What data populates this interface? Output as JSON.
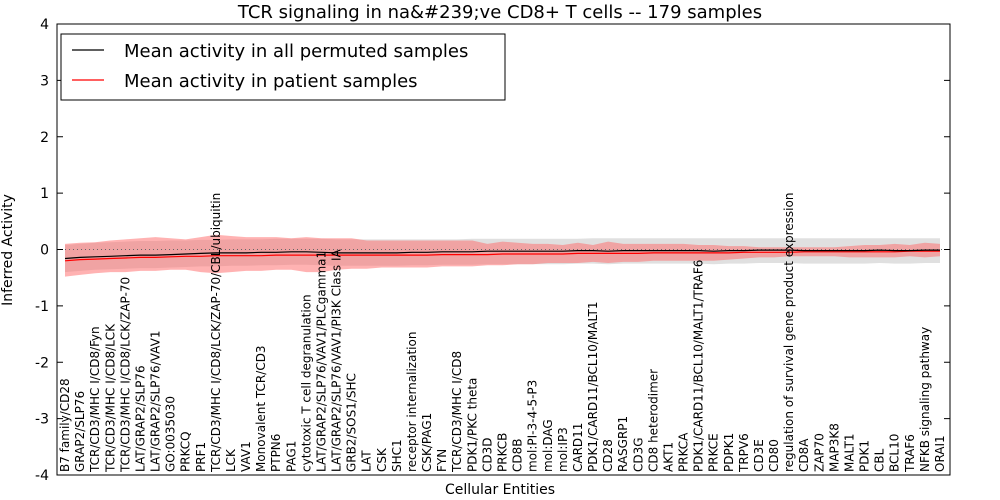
{
  "chart_data": {
    "type": "line",
    "title": "TCR signaling in na&#239;ve CD8+ T cells -- 179 samples",
    "xlabel": "Cellular Entities",
    "ylabel": "Inferred Activity",
    "ylim": [
      -4,
      4
    ],
    "yticks": [
      "-4",
      "-3",
      "-2",
      "-1",
      "0",
      "1",
      "2",
      "3",
      "4"
    ],
    "legend_position": "top-left",
    "zero_line": "dotted",
    "categories": [
      "B7 family/CD28",
      "GRAP2/SLP76",
      "TCR/CD3/MHC I/CD8/Fyn",
      "TCR/CD3/MHC I/CD8/LCK",
      "TCR/CD3/MHC I/CD8/LCK/ZAP-70",
      "LAT/GRAP2/SLP76",
      "LAT/GRAP2/SLP76/VAV1",
      "GO:0035030",
      "PRKCQ",
      "PRF1",
      "TCR/CD3/MHC I/CD8/LCK/ZAP-70/CBL/ubiquitin",
      "LCK",
      "VAV1",
      "Monovalent TCR/CD3",
      "PTPN6",
      "PAG1",
      "cytotoxic T cell degranulation",
      "LAT/GRAP2/SLP76/VAV1/PLCgamma1",
      "LAT/GRAP2/SLP76/VAV1/PI3K Class IA",
      "GRB2/SOS1/SHC",
      "LAT",
      "CSK",
      "SHC1",
      "receptor internalization",
      "CSK/PAG1",
      "FYN",
      "TCR/CD3/MHC I/CD8",
      "PDK1/PKC theta",
      "CD3D",
      "PRKCB",
      "CD8B",
      "mol:PI-3-4-5-P3",
      "mol:DAG",
      "mol:IP3",
      "CARD11",
      "PDK1/CARD11/BCL10/MALT1",
      "CD28",
      "RASGRP1",
      "CD3G",
      "CD8 heterodimer",
      "AKT1",
      "PRKCA",
      "PDK1/CARD11/BCL10/MALT1/TRAF6",
      "PRKCE",
      "PDPK1",
      "TRPV6",
      "CD3E",
      "CD80",
      "regulation of survival gene product expression",
      "CD8A",
      "ZAP70",
      "MAP3K8",
      "MALT1",
      "PDK1",
      "CBL",
      "BCL10",
      "TRAF6",
      "NFKB signaling pathway",
      "ORAI1"
    ],
    "series": [
      {
        "name": "Mean activity in all permuted samples",
        "color": "#000000",
        "values": [
          -0.16,
          -0.14,
          -0.13,
          -0.12,
          -0.11,
          -0.1,
          -0.1,
          -0.09,
          -0.08,
          -0.07,
          -0.06,
          -0.06,
          -0.06,
          -0.05,
          -0.05,
          -0.04,
          -0.04,
          -0.05,
          -0.06,
          -0.06,
          -0.06,
          -0.06,
          -0.06,
          -0.05,
          -0.05,
          -0.04,
          -0.04,
          -0.04,
          -0.03,
          -0.03,
          -0.03,
          -0.03,
          -0.03,
          -0.03,
          -0.02,
          -0.02,
          -0.03,
          -0.02,
          -0.02,
          -0.02,
          -0.02,
          -0.02,
          -0.02,
          -0.03,
          -0.02,
          -0.02,
          -0.01,
          -0.01,
          -0.01,
          -0.02,
          -0.02,
          -0.02,
          -0.02,
          -0.02,
          -0.01,
          -0.02,
          -0.02,
          -0.01,
          -0.01
        ],
        "upper": [
          0.08,
          0.1,
          0.12,
          0.13,
          0.14,
          0.15,
          0.15,
          0.16,
          0.16,
          0.17,
          0.17,
          0.18,
          0.18,
          0.18,
          0.19,
          0.19,
          0.19,
          0.19,
          0.18,
          0.18,
          0.18,
          0.18,
          0.18,
          0.18,
          0.18,
          0.18,
          0.18,
          0.19,
          0.19,
          0.19,
          0.19,
          0.19,
          0.19,
          0.19,
          0.19,
          0.2,
          0.2,
          0.2,
          0.2,
          0.2,
          0.2,
          0.2,
          0.2,
          0.2,
          0.2,
          0.2,
          0.2,
          0.2,
          0.2,
          0.2,
          0.2,
          0.2,
          0.2,
          0.2,
          0.2,
          0.2,
          0.2,
          0.2,
          0.2
        ],
        "lower": [
          -0.4,
          -0.38,
          -0.36,
          -0.35,
          -0.34,
          -0.33,
          -0.33,
          -0.32,
          -0.31,
          -0.3,
          -0.3,
          -0.29,
          -0.29,
          -0.28,
          -0.28,
          -0.27,
          -0.27,
          -0.28,
          -0.29,
          -0.29,
          -0.29,
          -0.29,
          -0.29,
          -0.28,
          -0.28,
          -0.27,
          -0.27,
          -0.27,
          -0.26,
          -0.26,
          -0.26,
          -0.26,
          -0.26,
          -0.26,
          -0.25,
          -0.25,
          -0.26,
          -0.25,
          -0.25,
          -0.25,
          -0.25,
          -0.25,
          -0.25,
          -0.26,
          -0.25,
          -0.25,
          -0.24,
          -0.24,
          -0.24,
          -0.25,
          -0.25,
          -0.25,
          -0.25,
          -0.25,
          -0.24,
          -0.25,
          -0.25,
          -0.24,
          -0.24
        ]
      },
      {
        "name": "Mean activity in patient samples",
        "color": "#ff0000",
        "values": [
          -0.2,
          -0.18,
          -0.17,
          -0.16,
          -0.15,
          -0.14,
          -0.14,
          -0.13,
          -0.12,
          -0.12,
          -0.11,
          -0.11,
          -0.11,
          -0.11,
          -0.1,
          -0.1,
          -0.1,
          -0.1,
          -0.1,
          -0.1,
          -0.1,
          -0.1,
          -0.1,
          -0.1,
          -0.1,
          -0.09,
          -0.09,
          -0.09,
          -0.09,
          -0.08,
          -0.08,
          -0.08,
          -0.08,
          -0.08,
          -0.07,
          -0.07,
          -0.07,
          -0.07,
          -0.07,
          -0.06,
          -0.06,
          -0.06,
          -0.06,
          -0.06,
          -0.06,
          -0.05,
          -0.05,
          -0.05,
          -0.05,
          -0.04,
          -0.04,
          -0.04,
          -0.04,
          -0.04,
          -0.04,
          -0.04,
          -0.03,
          -0.03,
          -0.03
        ],
        "upper": [
          0.1,
          0.12,
          0.13,
          0.16,
          0.18,
          0.2,
          0.22,
          0.2,
          0.18,
          0.22,
          0.26,
          0.24,
          0.22,
          0.22,
          0.22,
          0.2,
          0.22,
          0.2,
          0.2,
          0.2,
          0.16,
          0.16,
          0.16,
          0.16,
          0.16,
          0.16,
          0.16,
          0.16,
          0.1,
          0.14,
          0.12,
          0.1,
          0.1,
          0.08,
          0.12,
          0.08,
          0.14,
          0.1,
          0.1,
          0.1,
          0.1,
          0.1,
          0.08,
          0.08,
          0.06,
          0.06,
          0.04,
          0.04,
          0.04,
          0.04,
          0.04,
          0.04,
          0.06,
          0.08,
          0.08,
          0.1,
          0.08,
          0.12,
          0.1
        ],
        "lower": [
          -0.48,
          -0.45,
          -0.42,
          -0.4,
          -0.4,
          -0.38,
          -0.38,
          -0.36,
          -0.36,
          -0.4,
          -0.42,
          -0.4,
          -0.38,
          -0.38,
          -0.36,
          -0.36,
          -0.4,
          -0.4,
          -0.36,
          -0.34,
          -0.34,
          -0.32,
          -0.32,
          -0.32,
          -0.32,
          -0.3,
          -0.3,
          -0.3,
          -0.28,
          -0.28,
          -0.26,
          -0.26,
          -0.24,
          -0.24,
          -0.24,
          -0.22,
          -0.24,
          -0.22,
          -0.22,
          -0.2,
          -0.2,
          -0.2,
          -0.2,
          -0.2,
          -0.18,
          -0.16,
          -0.14,
          -0.14,
          -0.12,
          -0.12,
          -0.12,
          -0.12,
          -0.14,
          -0.14,
          -0.14,
          -0.14,
          -0.12,
          -0.14,
          -0.12
        ]
      }
    ]
  }
}
